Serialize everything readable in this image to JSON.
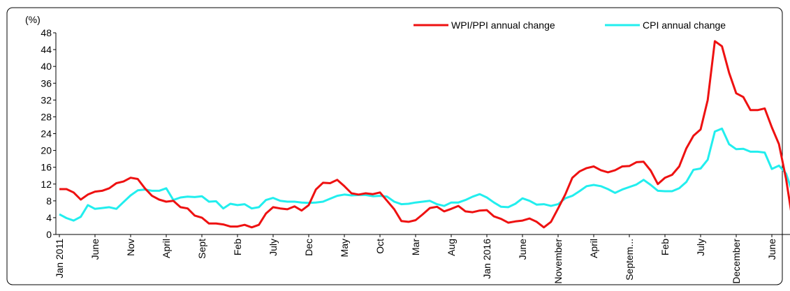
{
  "chart_data": {
    "type": "line",
    "y_unit": "(%)",
    "categories": [
      "Jan 2011",
      null,
      null,
      null,
      null,
      "June",
      null,
      null,
      null,
      null,
      "Nov",
      null,
      null,
      null,
      null,
      "April",
      null,
      null,
      null,
      null,
      "Sept",
      null,
      null,
      null,
      null,
      "Feb",
      null,
      null,
      null,
      null,
      "July",
      null,
      null,
      null,
      null,
      "Dec",
      null,
      null,
      null,
      null,
      "May",
      null,
      null,
      null,
      null,
      "Oct",
      null,
      null,
      null,
      null,
      "Mar",
      null,
      null,
      null,
      null,
      "Aug",
      null,
      null,
      null,
      null,
      "Jan 2016",
      null,
      null,
      null,
      null,
      "June",
      null,
      null,
      null,
      null,
      "November",
      null,
      null,
      null,
      null,
      "April",
      null,
      null,
      null,
      null,
      "Septem...",
      null,
      null,
      null,
      null,
      "Feb",
      null,
      null,
      null,
      null,
      "July",
      null,
      null,
      null,
      null,
      "December",
      null,
      null,
      null,
      null,
      "June",
      null,
      null,
      null
    ],
    "series": [
      {
        "name": "WPI/PPI annual change",
        "color": "#ee1111",
        "values": [
          10.8,
          10.8,
          10,
          8.3,
          9.5,
          10.2,
          10.4,
          11,
          12.2,
          12.6,
          13.5,
          13.2,
          11,
          9.2,
          8.3,
          7.8,
          8,
          6.5,
          6.2,
          4.5,
          4,
          2.6,
          2.6,
          2.4,
          1.9,
          1.9,
          2.3,
          1.7,
          2.3,
          5,
          6.5,
          6.2,
          6,
          6.7,
          5.7,
          7,
          10.7,
          12.3,
          12.2,
          13,
          11.5,
          9.8,
          9.5,
          9.8,
          9.6,
          10,
          8,
          6,
          3.2,
          3,
          3.4,
          4.8,
          6.3,
          6.6,
          5.5,
          6.1,
          6.8,
          5.5,
          5.3,
          5.7,
          5.8,
          4.3,
          3.7,
          2.8,
          3.1,
          3.3,
          3.8,
          3,
          1.7,
          3,
          6.2,
          9.5,
          13.5,
          15,
          15.8,
          16.2,
          15.3,
          14.8,
          15.3,
          16.2,
          16.3,
          17.2,
          17.3,
          15.2,
          12,
          13.5,
          14.2,
          16.2,
          20.5,
          23.5,
          25,
          32,
          46,
          44.8,
          38.5,
          33.6,
          32.7,
          29.6,
          29.6,
          30,
          25.5,
          21.5,
          13.2,
          2.3
        ]
      },
      {
        "name": "CPI annual change",
        "color": "#22eeee",
        "values": [
          4.8,
          3.9,
          3.3,
          4.2,
          7,
          6.1,
          6.3,
          6.5,
          6.1,
          7.7,
          9.3,
          10.5,
          10.7,
          10.4,
          10.4,
          11,
          8.2,
          8.8,
          9,
          8.9,
          9.1,
          7.8,
          7.9,
          6.2,
          7.3,
          7,
          7.2,
          6.2,
          6.5,
          8.2,
          8.7,
          8,
          7.8,
          7.8,
          7.6,
          7.5,
          7.6,
          7.8,
          8.5,
          9.2,
          9.5,
          9.3,
          9.4,
          9.4,
          9.1,
          9.2,
          9,
          7.8,
          7.2,
          7.3,
          7.6,
          7.8,
          8,
          7.2,
          6.8,
          7.6,
          7.6,
          8.2,
          9,
          9.6,
          8.8,
          7.6,
          6.6,
          6.5,
          7.3,
          8.6,
          8,
          7.1,
          7.2,
          6.8,
          7.2,
          8.6,
          9.2,
          10.3,
          11.5,
          11.8,
          11.5,
          10.8,
          9.9,
          10.7,
          11.3,
          11.9,
          13,
          11.8,
          10.4,
          10.3,
          10.3,
          11,
          12.5,
          15.4,
          15.7,
          17.8,
          24.5,
          25.2,
          21.5,
          20.3,
          20.4,
          19.7,
          19.7,
          19.5,
          15.6,
          16.4,
          14.5,
          9.4
        ]
      }
    ],
    "ylim": [
      0,
      48
    ],
    "yticks": [
      0,
      4,
      8,
      12,
      16,
      20,
      24,
      28,
      32,
      36,
      40,
      44,
      48
    ],
    "legend": "top-right"
  }
}
